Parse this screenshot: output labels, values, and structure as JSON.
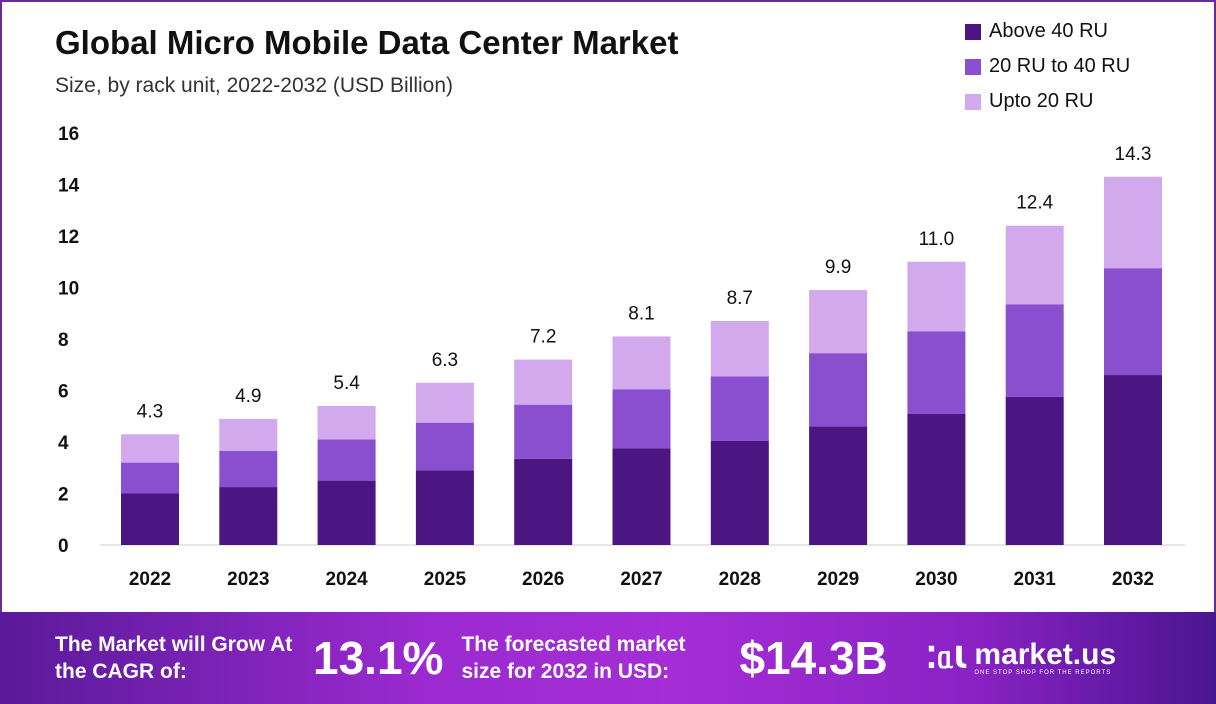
{
  "chart_data": {
    "type": "bar",
    "stacked": true,
    "title": "Global Micro Mobile Data Center Market",
    "subtitle": "Size, by rack unit, 2022-2032 (USD Billion)",
    "xlabel": "",
    "ylabel": "",
    "ylim": [
      0,
      16
    ],
    "yticks": [
      0,
      2,
      4,
      6,
      8,
      10,
      12,
      14,
      16
    ],
    "grid": false,
    "legend_position": "top-right",
    "categories": [
      "2022",
      "2023",
      "2024",
      "2025",
      "2026",
      "2027",
      "2028",
      "2029",
      "2030",
      "2031",
      "2032"
    ],
    "series": [
      {
        "name": "Above 40 RU",
        "color": "#4b1682",
        "values": [
          2.0,
          2.25,
          2.5,
          2.9,
          3.35,
          3.75,
          4.05,
          4.6,
          5.1,
          5.75,
          6.6
        ]
      },
      {
        "name": "20 RU to 40 RU",
        "color": "#8a4fcf",
        "values": [
          1.2,
          1.4,
          1.6,
          1.85,
          2.1,
          2.3,
          2.5,
          2.85,
          3.2,
          3.6,
          4.15
        ]
      },
      {
        "name": "Upto 20 RU",
        "color": "#d1a9ec",
        "values": [
          1.1,
          1.25,
          1.3,
          1.55,
          1.75,
          2.05,
          2.15,
          2.45,
          2.7,
          3.05,
          3.55
        ]
      }
    ],
    "totals": [
      "4.3",
      "4.9",
      "5.4",
      "6.3",
      "7.2",
      "8.1",
      "8.7",
      "9.9",
      "11.0",
      "12.4",
      "14.3"
    ]
  },
  "footer": {
    "cagr_label": "The Market will Grow At the CAGR of:",
    "cagr_value": "13.1%",
    "forecast_label": "The forecasted market size for 2032 in USD:",
    "forecast_value": "$14.3B",
    "logo_name": "market.us",
    "logo_tagline": "ONE STOP SHOP FOR THE REPORTS"
  }
}
